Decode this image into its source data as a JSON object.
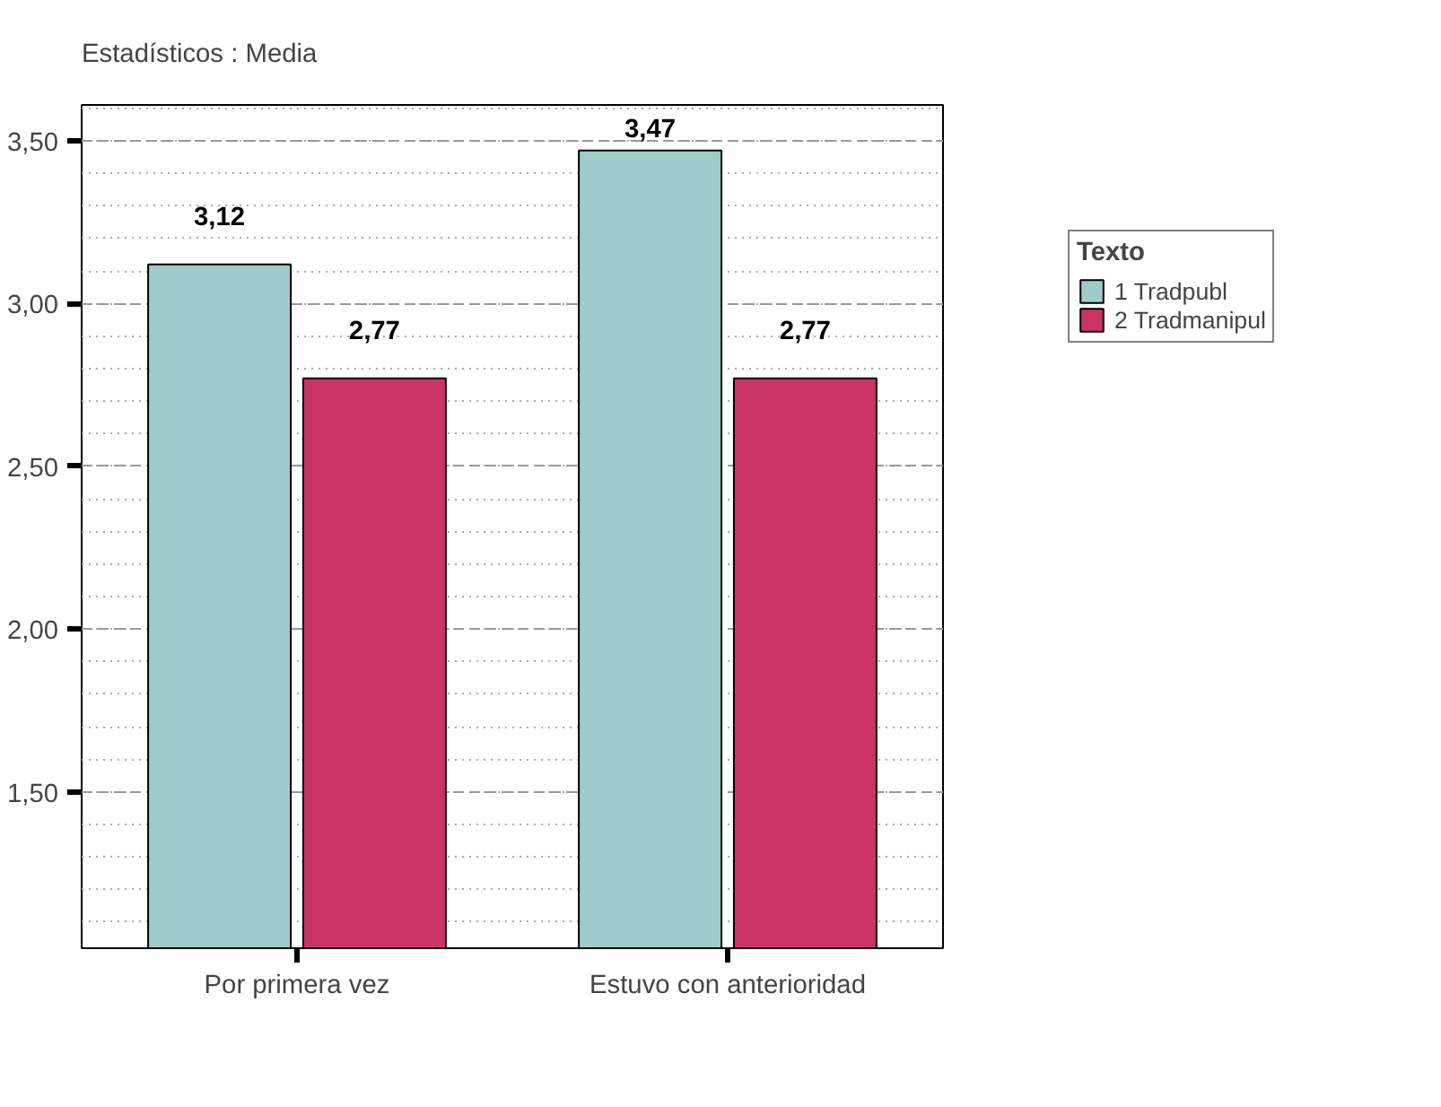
{
  "chart_data": {
    "type": "bar",
    "title": "Estadísticos : Media",
    "categories": [
      "Por primera vez",
      "Estuvo con anterioridad"
    ],
    "series": [
      {
        "name": "1 Tradpubl",
        "color": "#9dcccb",
        "values": [
          3.12,
          3.47
        ],
        "value_labels": [
          "3,12",
          "3,47"
        ]
      },
      {
        "name": "2 Tradmanipul",
        "color": "#cc3463",
        "values": [
          2.77,
          2.77
        ],
        "value_labels": [
          "2,77",
          "2,77"
        ]
      }
    ],
    "legend_title": "Texto",
    "legend": "top right",
    "ylim": [
      1.02,
      3.61
    ],
    "yticks": [
      {
        "value": 1.5,
        "label": "1,50"
      },
      {
        "value": 2.0,
        "label": "2,00"
      },
      {
        "value": 2.5,
        "label": "2,50"
      },
      {
        "value": 3.0,
        "label": "3,00"
      },
      {
        "value": 3.5,
        "label": "3,50"
      }
    ],
    "grid": "y"
  }
}
